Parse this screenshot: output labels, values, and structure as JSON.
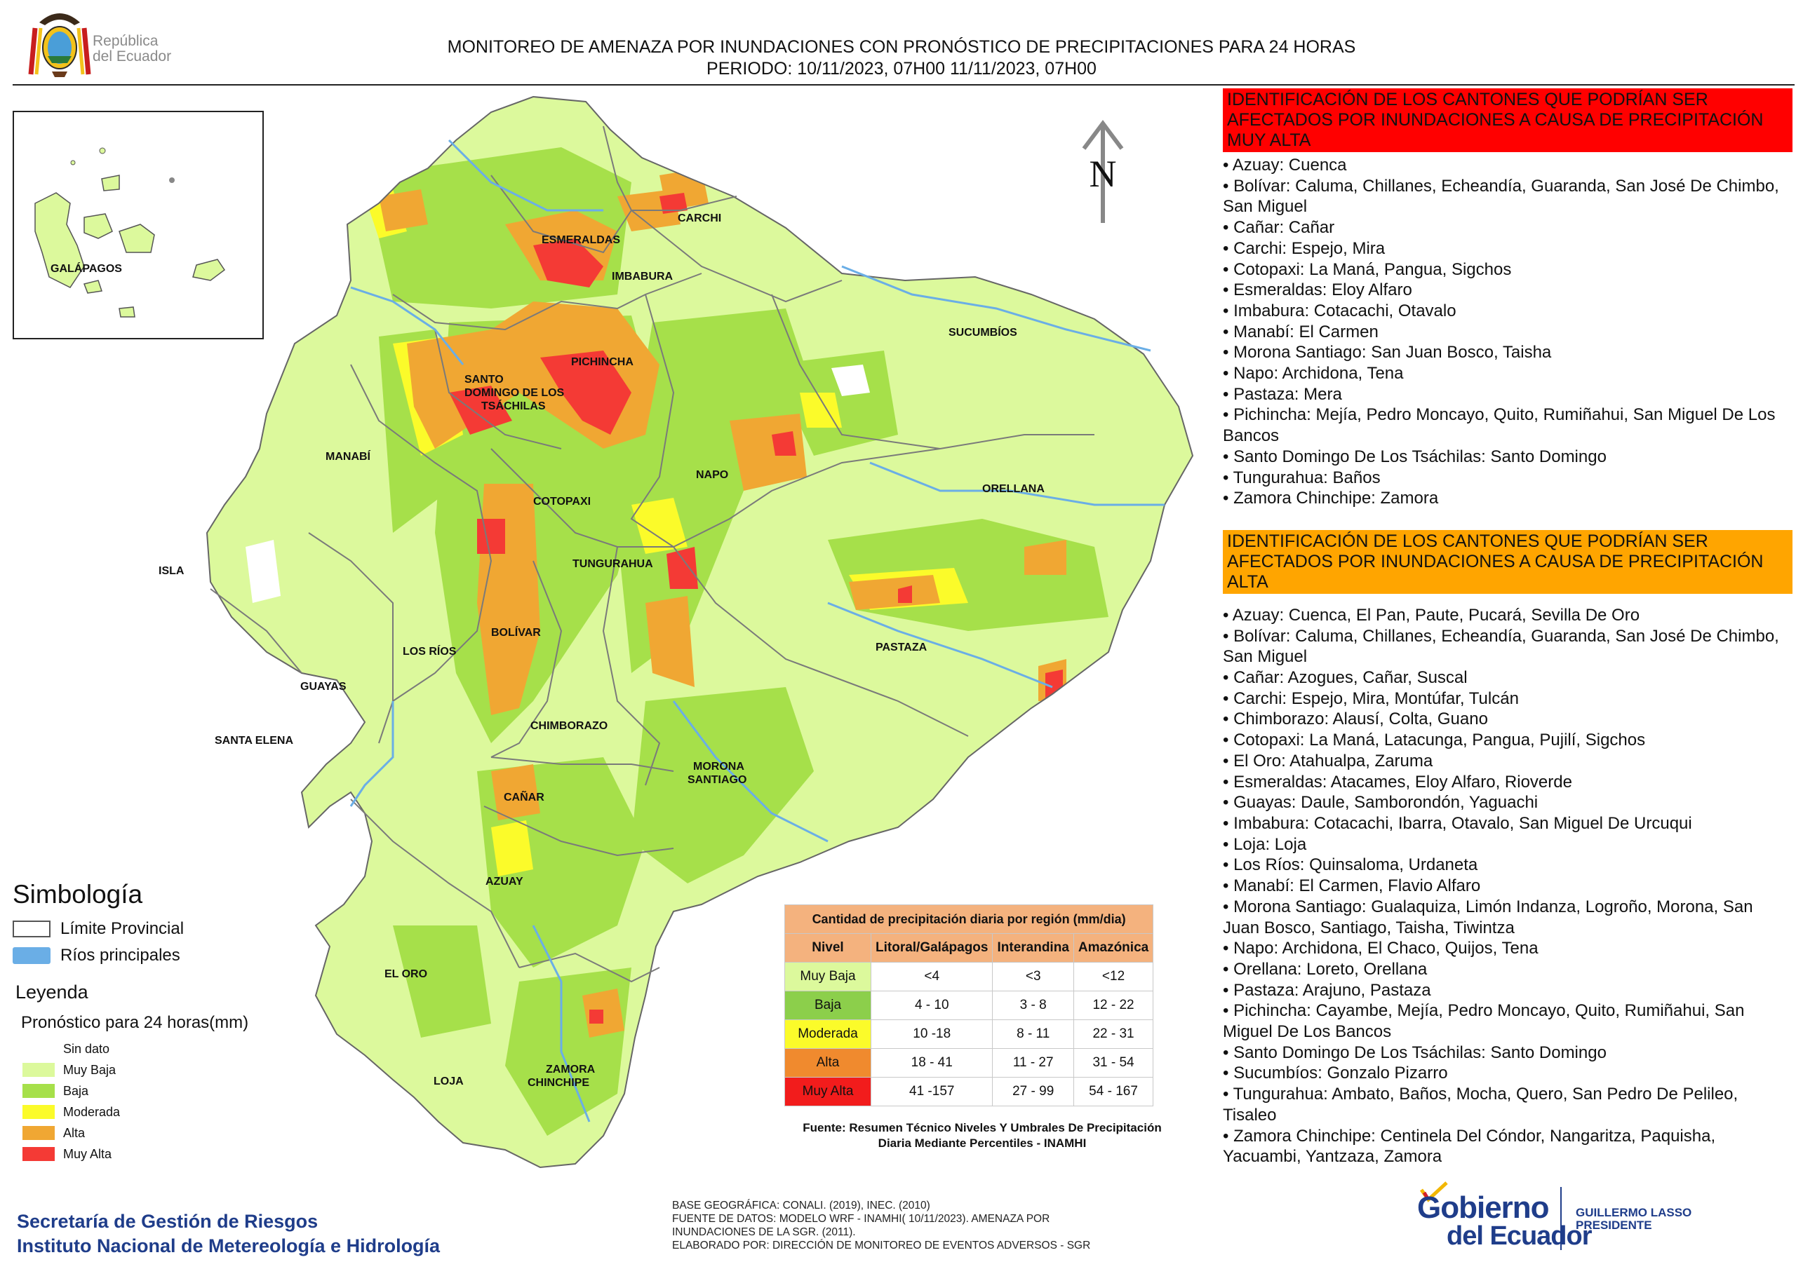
{
  "header": {
    "title_line1": "MONITOREO DE AMENAZA POR INUNDACIONES  CON PRONÓSTICO DE  PRECIPITACIONES PARA 24 HORAS",
    "title_line2": "PERIODO: 10/11/2023, 07H00 11/11/2023, 07H00",
    "logo_text_line1": "República",
    "logo_text_line2": "del Ecuador"
  },
  "map": {
    "north_label": "N",
    "inset_label": "GALÁPAGOS",
    "province_labels": [
      "CARCHI",
      "ESMERALDAS",
      "IMBABURA",
      "SUCUMBÍOS",
      "PICHINCHA",
      "SANTO",
      "DOMINGO DE LOS",
      "TSÁCHILAS",
      "MANABÍ",
      "NAPO",
      "ORELLANA",
      "COTOPAXI",
      "TUNGURAHUA",
      "ISLA",
      "BOLÍVAR",
      "LOS RÍOS",
      "PASTAZA",
      "GUAYAS",
      "SANTA ELENA",
      "CHIMBORAZO",
      "MORONA",
      "SANTIAGO",
      "CAÑAR",
      "AZUAY",
      "EL ORO",
      "ZAMORA",
      "CHINCHIPE",
      "LOJA"
    ],
    "colors": {
      "muy_baja": "#dcf99c",
      "baja": "#a6e04a",
      "moderada": "#fbfb2a",
      "alta": "#f0a733",
      "muy_alta": "#f43a35",
      "sin_dato": "#ffffff",
      "river": "#6aaee6",
      "boundary": "#7a7a7a"
    }
  },
  "muy_alta_section": {
    "header": "IDENTIFICACIÓN DE LOS CANTONES QUE PODRÍAN SER AFECTADOS POR INUNDACIONES  A CAUSA DE PRECIPITACIÓN MUY ALTA",
    "items": [
      "Azuay: Cuenca",
      "Bolívar: Caluma, Chillanes, Echeandía, Guaranda, San José De Chimbo, San Miguel",
      "Cañar: Cañar",
      "Carchi: Espejo, Mira",
      "Cotopaxi: La Maná, Pangua, Sigchos",
      "Esmeraldas: Eloy Alfaro",
      "Imbabura: Cotacachi, Otavalo",
      "Manabí: El Carmen",
      "Morona Santiago: San Juan Bosco, Taisha",
      "Napo: Archidona, Tena",
      "Pastaza: Mera",
      "Pichincha: Mejía, Pedro Moncayo, Quito, Rumiñahui, San Miguel De Los Bancos",
      "Santo Domingo De Los Tsáchilas: Santo Domingo",
      "Tungurahua: Baños",
      "Zamora Chinchipe: Zamora"
    ]
  },
  "alta_section": {
    "header": "IDENTIFICACIÓN DE LOS CANTONES QUE  PODRÍAN SER AFECTADOS POR INUNDACIONES  A CAUSA DE PRECIPITACIÓN ALTA",
    "items": [
      "Azuay: Cuenca, El Pan, Paute, Pucará, Sevilla De Oro",
      "Bolívar: Caluma, Chillanes, Echeandía, Guaranda, San José De Chimbo, San Miguel",
      "Cañar: Azogues, Cañar, Suscal",
      "Carchi: Espejo, Mira, Montúfar, Tulcán",
      "Chimborazo: Alausí, Colta, Guano",
      "Cotopaxi: La Maná, Latacunga, Pangua, Pujilí, Sigchos",
      "El Oro: Atahualpa, Zaruma",
      "Esmeraldas: Atacames, Eloy Alfaro, Rioverde",
      "Guayas: Daule, Samborondón, Yaguachi",
      "Imbabura: Cotacachi, Ibarra, Otavalo, San Miguel De Urcuqui",
      "Loja: Loja",
      "Los Ríos: Quinsaloma, Urdaneta",
      "Manabí: El Carmen, Flavio Alfaro",
      "Morona Santiago: Gualaquiza, Limón Indanza, Logroño, Morona, San Juan Bosco, Santiago, Taisha, Tiwintza",
      "Napo: Archidona, El Chaco, Quijos, Tena",
      "Orellana: Loreto, Orellana",
      "Pastaza: Arajuno, Pastaza",
      "Pichincha: Cayambe, Mejía, Pedro Moncayo, Quito, Rumiñahui, San Miguel De Los Bancos",
      "Santo Domingo De Los Tsáchilas: Santo Domingo",
      "Sucumbíos: Gonzalo Pizarro",
      "Tungurahua: Ambato, Baños, Mocha, Quero, San Pedro De Pelileo, Tisaleo",
      "Zamora Chinchipe: Centinela Del Cóndor, Nangaritza, Paquisha, Yacuambi, Yantzaza, Zamora"
    ]
  },
  "simbologia": {
    "title": "Simbología",
    "items": [
      {
        "label": "Límite Provincial",
        "fill": "#ffffff",
        "stroke": "#555555"
      },
      {
        "label": "Ríos principales",
        "fill": "#6aaee6",
        "stroke": "#6aaee6"
      }
    ]
  },
  "leyenda": {
    "title": "Leyenda",
    "subtitle": "Pronóstico para 24 horas(mm)",
    "items": [
      {
        "label": "Sin dato",
        "color": "#ffffff"
      },
      {
        "label": "Muy Baja",
        "color": "#dcf99c"
      },
      {
        "label": "Baja",
        "color": "#a6e04a"
      },
      {
        "label": "Moderada",
        "color": "#fbfb2a"
      },
      {
        "label": "Alta",
        "color": "#f0a733"
      },
      {
        "label": "Muy Alta",
        "color": "#f43a35"
      }
    ]
  },
  "precip_table": {
    "title": "Cantidad de precipitación diaria por región (mm/dia)",
    "columns": [
      "Nivel",
      "Litoral/Galápagos",
      "Interandina",
      "Amazónica"
    ],
    "rows": [
      {
        "nivel": "Muy Baja",
        "color": "#dcf99c",
        "litoral": "<4",
        "interandina": "<3",
        "amazonica": "<12"
      },
      {
        "nivel": "Baja",
        "color": "#8ccf4b",
        "litoral": "4 - 10",
        "interandina": "3 - 8",
        "amazonica": "12 - 22"
      },
      {
        "nivel": "Moderada",
        "color": "#fbfb2a",
        "litoral": "10 -18",
        "interandina": "8 - 11",
        "amazonica": "22 - 31"
      },
      {
        "nivel": "Alta",
        "color": "#f08a2e",
        "litoral": "18 - 41",
        "interandina": "11 - 27",
        "amazonica": "31 - 54"
      },
      {
        "nivel": "Muy Alta",
        "color": "#f21c1c",
        "litoral": "41 -157",
        "interandina": "27 - 99",
        "amazonica": "54 - 167"
      }
    ],
    "source": "Fuente: Resumen Técnico Niveles Y Umbrales De Precipitación Diaria Mediante Percentiles - INAMHI"
  },
  "footer": {
    "org_line1": "Secretaría de Gestión de Riesgos",
    "org_line2": "Instituto Nacional de Metereología e Hidrología",
    "base_line1": "BASE GEOGRÁFICA: CONALI. (2019), INEC. (2010)",
    "base_line2": "FUENTE DE DATOS: MODELO WRF - INAMHI( 10/11/2023).  AMENAZA POR",
    "base_line3": "INUNDACIONES DE LA SGR. (2011).",
    "base_line4": "ELABORADO POR: DIRECCIÓN DE MONITOREO DE EVENTOS ADVERSOS - SGR",
    "gob_line1": "Gobierno",
    "gob_line2": "del Ecuador",
    "president_line1": "GUILLERMO LASSO",
    "president_line2": "PRESIDENTE"
  }
}
